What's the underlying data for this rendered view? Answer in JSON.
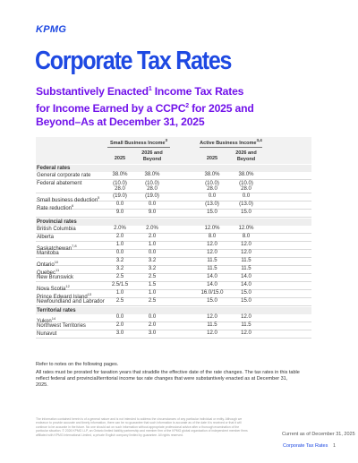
{
  "logo": "KPMG",
  "title": "Corporate Tax Rates",
  "subtitle": {
    "line1a": "Substantively Enacted",
    "sup1": "1",
    "line1b": " Income Tax Rates",
    "line2a": "for Income Earned by a CCPC",
    "sup2": "2",
    "line2b": " for 2025 and",
    "line3": "Beyond–As at December 31, 2025"
  },
  "table": {
    "group_small": "Small Business Income",
    "group_small_sup": "3",
    "group_active": "Active Business Income",
    "group_active_sup": "3,4",
    "col_2025": "2025",
    "col_beyond": "2026 and Beyond",
    "sections": [
      {
        "name": "Federal rates",
        "rows": [
          {
            "label": "General corporate rate",
            "v": [
              "38.0%",
              "38.0%",
              "38.0%",
              "38.0%"
            ]
          },
          {
            "label": "Federal abatement",
            "v": [
              "(10.0)",
              "(10.0)",
              "(10.0)",
              "(10.0)"
            ],
            "v2": [
              "28.0",
              "28.0",
              "28.0",
              "28.0"
            ]
          },
          {
            "label": "Small business deduction",
            "sup": "5",
            "v": [
              "(19.0)",
              "(19.0)",
              "0.0",
              "0.0"
            ]
          },
          {
            "label": "Rate reduction",
            "sup": "6",
            "v": [
              "0.0",
              "0.0",
              "(13.0)",
              "(13.0)"
            ]
          },
          {
            "label": "",
            "v": [
              "9.0",
              "9.0",
              "15.0",
              "15.0"
            ]
          }
        ]
      },
      {
        "name": "Provincial rates",
        "rows": [
          {
            "label": "British Columbia",
            "v": [
              "2.0%",
              "2.0%",
              "12.0%",
              "12.0%"
            ]
          },
          {
            "label": "Alberta",
            "v": [
              "2.0",
              "2.0",
              "8.0",
              "8.0"
            ]
          },
          {
            "label": "Saskatchewan",
            "sup": "7,8",
            "v": [
              "1.0",
              "1.0",
              "12.0",
              "12.0"
            ]
          },
          {
            "label": "Manitoba",
            "sup": "",
            "v": [
              "0.0",
              "0.0",
              "12.0",
              "12.0"
            ]
          },
          {
            "label": "Ontario",
            "sup": "10",
            "v": [
              "3.2",
              "3.2",
              "11.5",
              "11.5"
            ]
          },
          {
            "label": "Quebec",
            "sup": "11",
            "v": [
              "3.2",
              "3.2",
              "11.5",
              "11.5"
            ]
          },
          {
            "label": "New Brunswick",
            "v": [
              "2.5",
              "2.5",
              "14.0",
              "14.0"
            ]
          },
          {
            "label": "Nova Scotia",
            "sup": "12",
            "v": [
              "2.5/1.5",
              "1.5",
              "14.0",
              "14.0"
            ]
          },
          {
            "label": "Prince Edward Island",
            "sup": "13",
            "v": [
              "1.0",
              "1.0",
              "16.0/15.0",
              "15.0"
            ]
          },
          {
            "label": "Newfoundland and Labrador",
            "v": [
              "2.5",
              "2.5",
              "15.0",
              "15.0"
            ]
          }
        ]
      },
      {
        "name": "Territorial rates",
        "rows": [
          {
            "label": "Yukon",
            "sup": "14",
            "v": [
              "0.0",
              "0.0",
              "12.0",
              "12.0"
            ]
          },
          {
            "label": "Northwest Territories",
            "v": [
              "2.0",
              "2.0",
              "11.5",
              "11.5"
            ]
          },
          {
            "label": "Nunavut",
            "v": [
              "3.0",
              "3.0",
              "12.0",
              "12.0"
            ]
          }
        ]
      }
    ]
  },
  "refer": "Refer to notes on the following pages.",
  "note": "All rates must be prorated for taxation years that straddle the effective date of the rate changes. The tax rates in this table reflect federal and provincial/territorial income tax rate changes that were substantively enacted as at December 31, 2025.",
  "fine_print": "The information contained herein is of a general nature and is not intended to address the circumstances of any particular individual or entity. Although we endeavor to provide accurate and timely information, there can be no guarantee that such information is accurate as of the date it is received or that it will continue to be accurate in the future. No one should act on such information without appropriate professional advice after a thorough examination of the particular situation. © 2026 KPMG LLP, an Ontario limited liability partnership and member firm of the KPMG global organization of independent member firms affiliated with KPMG International Limited, a private English company limited by guarantee. All rights reserved.",
  "current_as_of": "Current as of December 31, 2025",
  "footer_title": "Corporate Tax Rates",
  "page_number": "1",
  "colors": {
    "kpmg_blue": "#1E49E2",
    "purple": "#7213EA"
  }
}
